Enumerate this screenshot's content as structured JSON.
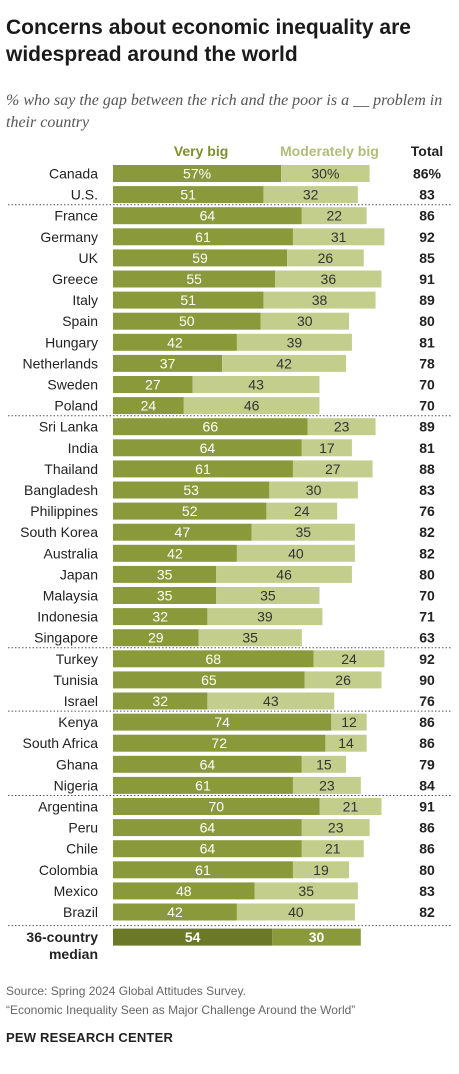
{
  "header": {
    "title": "Concerns about economic inequality are widespread around the world",
    "subtitle": "% who say the gap between the rich and the poor is a __ problem in their country"
  },
  "chart_data": {
    "type": "bar",
    "stacked": true,
    "orientation": "horizontal",
    "legend": {
      "very_big": "Very big",
      "moderately_big": "Moderately big",
      "total": "Total"
    },
    "colors": {
      "very_big": "#8a9a3a",
      "moderately_big": "#c4ce8c",
      "median_very_big": "#6b7828",
      "median_moderately_big": "#8a9a3a"
    },
    "groups": [
      {
        "rows": [
          {
            "country": "Canada",
            "very_big": "57%",
            "moderately_big": "30%",
            "total": "86%"
          },
          {
            "country": "U.S.",
            "very_big": "51",
            "moderately_big": "32",
            "total": "83"
          }
        ]
      },
      {
        "rows": [
          {
            "country": "France",
            "very_big": "64",
            "moderately_big": "22",
            "total": "86"
          },
          {
            "country": "Germany",
            "very_big": "61",
            "moderately_big": "31",
            "total": "92"
          },
          {
            "country": "UK",
            "very_big": "59",
            "moderately_big": "26",
            "total": "85"
          },
          {
            "country": "Greece",
            "very_big": "55",
            "moderately_big": "36",
            "total": "91"
          },
          {
            "country": "Italy",
            "very_big": "51",
            "moderately_big": "38",
            "total": "89"
          },
          {
            "country": "Spain",
            "very_big": "50",
            "moderately_big": "30",
            "total": "80"
          },
          {
            "country": "Hungary",
            "very_big": "42",
            "moderately_big": "39",
            "total": "81"
          },
          {
            "country": "Netherlands",
            "very_big": "37",
            "moderately_big": "42",
            "total": "78"
          },
          {
            "country": "Sweden",
            "very_big": "27",
            "moderately_big": "43",
            "total": "70"
          },
          {
            "country": "Poland",
            "very_big": "24",
            "moderately_big": "46",
            "total": "70"
          }
        ]
      },
      {
        "rows": [
          {
            "country": "Sri Lanka",
            "very_big": "66",
            "moderately_big": "23",
            "total": "89"
          },
          {
            "country": "India",
            "very_big": "64",
            "moderately_big": "17",
            "total": "81"
          },
          {
            "country": "Thailand",
            "very_big": "61",
            "moderately_big": "27",
            "total": "88"
          },
          {
            "country": "Bangladesh",
            "very_big": "53",
            "moderately_big": "30",
            "total": "83"
          },
          {
            "country": "Philippines",
            "very_big": "52",
            "moderately_big": "24",
            "total": "76"
          },
          {
            "country": "South Korea",
            "very_big": "47",
            "moderately_big": "35",
            "total": "82"
          },
          {
            "country": "Australia",
            "very_big": "42",
            "moderately_big": "40",
            "total": "82"
          },
          {
            "country": "Japan",
            "very_big": "35",
            "moderately_big": "46",
            "total": "80"
          },
          {
            "country": "Malaysia",
            "very_big": "35",
            "moderately_big": "35",
            "total": "70"
          },
          {
            "country": "Indonesia",
            "very_big": "32",
            "moderately_big": "39",
            "total": "71"
          },
          {
            "country": "Singapore",
            "very_big": "29",
            "moderately_big": "35",
            "total": "63"
          }
        ]
      },
      {
        "rows": [
          {
            "country": "Turkey",
            "very_big": "68",
            "moderately_big": "24",
            "total": "92"
          },
          {
            "country": "Tunisia",
            "very_big": "65",
            "moderately_big": "26",
            "total": "90"
          },
          {
            "country": "Israel",
            "very_big": "32",
            "moderately_big": "43",
            "total": "76"
          }
        ]
      },
      {
        "rows": [
          {
            "country": "Kenya",
            "very_big": "74",
            "moderately_big": "12",
            "total": "86"
          },
          {
            "country": "South Africa",
            "very_big": "72",
            "moderately_big": "14",
            "total": "86"
          },
          {
            "country": "Ghana",
            "very_big": "64",
            "moderately_big": "15",
            "total": "79"
          },
          {
            "country": "Nigeria",
            "very_big": "61",
            "moderately_big": "23",
            "total": "84"
          }
        ]
      },
      {
        "rows": [
          {
            "country": "Argentina",
            "very_big": "70",
            "moderately_big": "21",
            "total": "91"
          },
          {
            "country": "Peru",
            "very_big": "64",
            "moderately_big": "23",
            "total": "86"
          },
          {
            "country": "Chile",
            "very_big": "64",
            "moderately_big": "21",
            "total": "86"
          },
          {
            "country": "Colombia",
            "very_big": "61",
            "moderately_big": "19",
            "total": "80"
          },
          {
            "country": "Mexico",
            "very_big": "48",
            "moderately_big": "35",
            "total": "83"
          },
          {
            "country": "Brazil",
            "very_big": "42",
            "moderately_big": "40",
            "total": "82"
          }
        ]
      }
    ],
    "median": {
      "label_line1": "36-country",
      "label_line2": "median",
      "very_big": "54",
      "moderately_big": "30"
    }
  },
  "footer": {
    "source": "Source: Spring 2024 Global Attitudes Survey.",
    "report": "“Economic Inequality Seen as Major Challenge Around the World”",
    "org": "PEW RESEARCH CENTER"
  }
}
